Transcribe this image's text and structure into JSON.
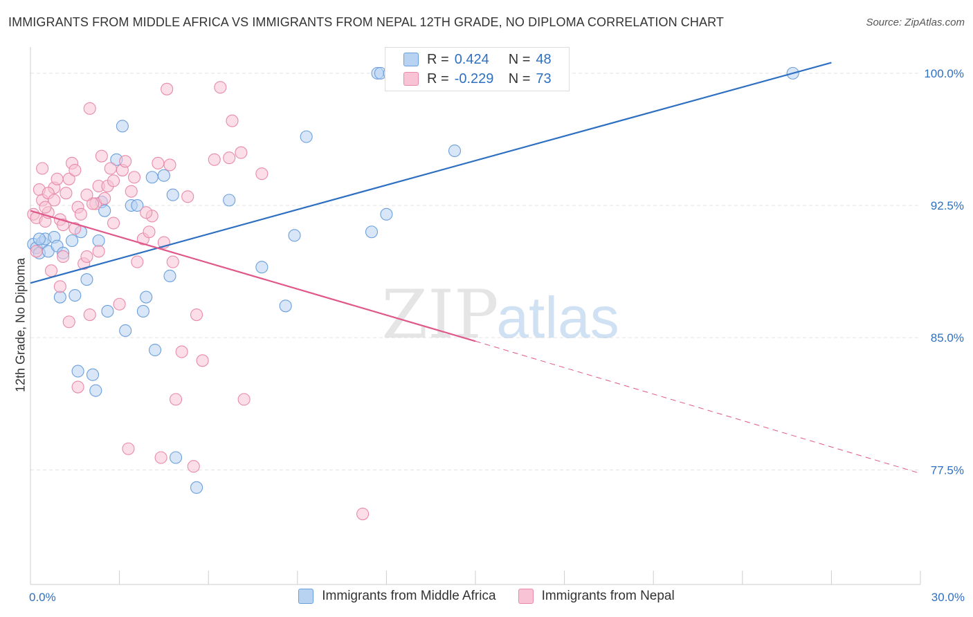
{
  "title": "IMMIGRANTS FROM MIDDLE AFRICA VS IMMIGRANTS FROM NEPAL 12TH GRADE, NO DIPLOMA CORRELATION CHART",
  "source": "Source: ZipAtlas.com",
  "watermark": {
    "zip": "ZIP",
    "atlas": "atlas"
  },
  "legend": {
    "rows": [
      {
        "r_label": "R =",
        "r_value": "0.424",
        "n_label": "N =",
        "n_value": "48"
      },
      {
        "r_label": "R =",
        "r_value": "-0.229",
        "n_label": "N =",
        "n_value": "73"
      }
    ]
  },
  "colors": {
    "blue": "#2e6fc2",
    "blue_fill": "#b8d2f2",
    "blue_stroke": "#6a9fdc",
    "pink": "#e0588a",
    "pink_fill": "#f8c3d4",
    "pink_stroke": "#e88aa9",
    "grid": "#e3e3e3",
    "tick_label": "#2e6fc2"
  },
  "chart_data": {
    "type": "scatter",
    "xlabel": "",
    "ylabel": "12th Grade, No Diploma",
    "xlim": [
      0,
      30
    ],
    "ylim": [
      71,
      101.8
    ],
    "x_tick_labels": [
      {
        "v": 0,
        "t": "0.0%"
      },
      {
        "v": 30,
        "t": "30.0%"
      }
    ],
    "y_ticks": [
      {
        "v": 77.5,
        "t": "77.5%"
      },
      {
        "v": 85.0,
        "t": "85.0%"
      },
      {
        "v": 92.5,
        "t": "92.5%"
      },
      {
        "v": 100.0,
        "t": "100.0%"
      }
    ],
    "series": [
      {
        "name": "Immigrants from Middle Africa",
        "color": "blue",
        "trend": {
          "x0": 0,
          "y0": 88.1,
          "x1": 27.0,
          "y1": 100.6,
          "dash_to": null
        },
        "points": [
          [
            0.1,
            90.3
          ],
          [
            0.2,
            90.1
          ],
          [
            0.3,
            89.8
          ],
          [
            0.4,
            90.4
          ],
          [
            0.5,
            90.6
          ],
          [
            0.6,
            89.9
          ],
          [
            0.8,
            90.7
          ],
          [
            0.9,
            90.2
          ],
          [
            1.0,
            87.3
          ],
          [
            1.1,
            89.8
          ],
          [
            1.4,
            90.5
          ],
          [
            1.5,
            87.4
          ],
          [
            1.6,
            83.1
          ],
          [
            1.7,
            91.0
          ],
          [
            1.9,
            88.3
          ],
          [
            2.1,
            82.9
          ],
          [
            2.2,
            82.0
          ],
          [
            2.3,
            90.5
          ],
          [
            2.4,
            92.7
          ],
          [
            2.5,
            92.2
          ],
          [
            2.6,
            86.5
          ],
          [
            2.9,
            95.1
          ],
          [
            3.2,
            85.4
          ],
          [
            3.1,
            97.0
          ],
          [
            3.4,
            92.5
          ],
          [
            3.6,
            92.5
          ],
          [
            3.8,
            86.5
          ],
          [
            3.9,
            87.3
          ],
          [
            4.1,
            94.1
          ],
          [
            4.2,
            84.3
          ],
          [
            4.5,
            94.2
          ],
          [
            4.7,
            88.5
          ],
          [
            4.8,
            93.1
          ],
          [
            4.9,
            78.2
          ],
          [
            5.6,
            76.5
          ],
          [
            6.7,
            92.8
          ],
          [
            7.8,
            89.0
          ],
          [
            8.6,
            86.8
          ],
          [
            8.9,
            90.8
          ],
          [
            9.3,
            96.4
          ],
          [
            11.5,
            91.0
          ],
          [
            12.0,
            92.0
          ],
          [
            11.7,
            100.0
          ],
          [
            11.8,
            100.0
          ],
          [
            12.1,
            100.0
          ],
          [
            14.3,
            95.6
          ],
          [
            25.7,
            100.0
          ],
          [
            0.3,
            90.6
          ]
        ]
      },
      {
        "name": "Immigrants from Nepal",
        "color": "pink",
        "trend": {
          "x0": 0,
          "y0": 92.2,
          "x1": 15.0,
          "y1": 84.8,
          "dash_to": {
            "x": 30,
            "y": 77.3
          }
        },
        "points": [
          [
            0.1,
            92.0
          ],
          [
            0.2,
            91.8
          ],
          [
            0.3,
            93.4
          ],
          [
            0.4,
            92.8
          ],
          [
            0.5,
            91.6
          ],
          [
            0.6,
            92.1
          ],
          [
            0.7,
            88.8
          ],
          [
            0.8,
            93.5
          ],
          [
            0.9,
            94.0
          ],
          [
            1.0,
            91.7
          ],
          [
            1.1,
            89.6
          ],
          [
            1.2,
            93.2
          ],
          [
            1.3,
            85.9
          ],
          [
            1.4,
            94.9
          ],
          [
            1.5,
            91.2
          ],
          [
            1.6,
            92.4
          ],
          [
            1.8,
            89.2
          ],
          [
            1.9,
            89.6
          ],
          [
            2.0,
            86.3
          ],
          [
            2.2,
            92.6
          ],
          [
            2.3,
            93.6
          ],
          [
            2.4,
            95.3
          ],
          [
            2.5,
            92.9
          ],
          [
            2.6,
            93.6
          ],
          [
            2.7,
            94.6
          ],
          [
            2.8,
            91.5
          ],
          [
            3.0,
            86.9
          ],
          [
            3.1,
            94.5
          ],
          [
            3.3,
            78.7
          ],
          [
            3.4,
            93.3
          ],
          [
            3.5,
            94.1
          ],
          [
            3.6,
            89.3
          ],
          [
            3.8,
            90.6
          ],
          [
            4.0,
            91.0
          ],
          [
            4.1,
            91.9
          ],
          [
            4.3,
            94.9
          ],
          [
            4.4,
            78.2
          ],
          [
            4.5,
            90.4
          ],
          [
            4.6,
            99.1
          ],
          [
            4.7,
            94.8
          ],
          [
            4.8,
            89.3
          ],
          [
            4.9,
            81.5
          ],
          [
            5.1,
            84.2
          ],
          [
            5.3,
            93.0
          ],
          [
            5.5,
            77.7
          ],
          [
            5.6,
            86.3
          ],
          [
            5.8,
            83.7
          ],
          [
            6.2,
            95.1
          ],
          [
            6.4,
            99.2
          ],
          [
            6.7,
            95.2
          ],
          [
            6.8,
            97.3
          ],
          [
            7.1,
            95.5
          ],
          [
            7.2,
            81.5
          ],
          [
            7.8,
            94.3
          ],
          [
            11.2,
            75.0
          ],
          [
            1.1,
            91.4
          ],
          [
            1.7,
            92.0
          ],
          [
            2.1,
            92.6
          ],
          [
            0.4,
            94.6
          ],
          [
            0.6,
            93.2
          ],
          [
            1.3,
            94.0
          ],
          [
            1.0,
            87.9
          ],
          [
            2.0,
            98.0
          ],
          [
            1.6,
            82.2
          ],
          [
            2.3,
            89.9
          ],
          [
            0.8,
            92.8
          ],
          [
            1.9,
            93.1
          ],
          [
            2.8,
            93.9
          ],
          [
            3.2,
            95.0
          ],
          [
            0.2,
            89.9
          ],
          [
            1.5,
            94.5
          ],
          [
            3.9,
            92.1
          ],
          [
            0.5,
            92.4
          ]
        ]
      }
    ]
  }
}
